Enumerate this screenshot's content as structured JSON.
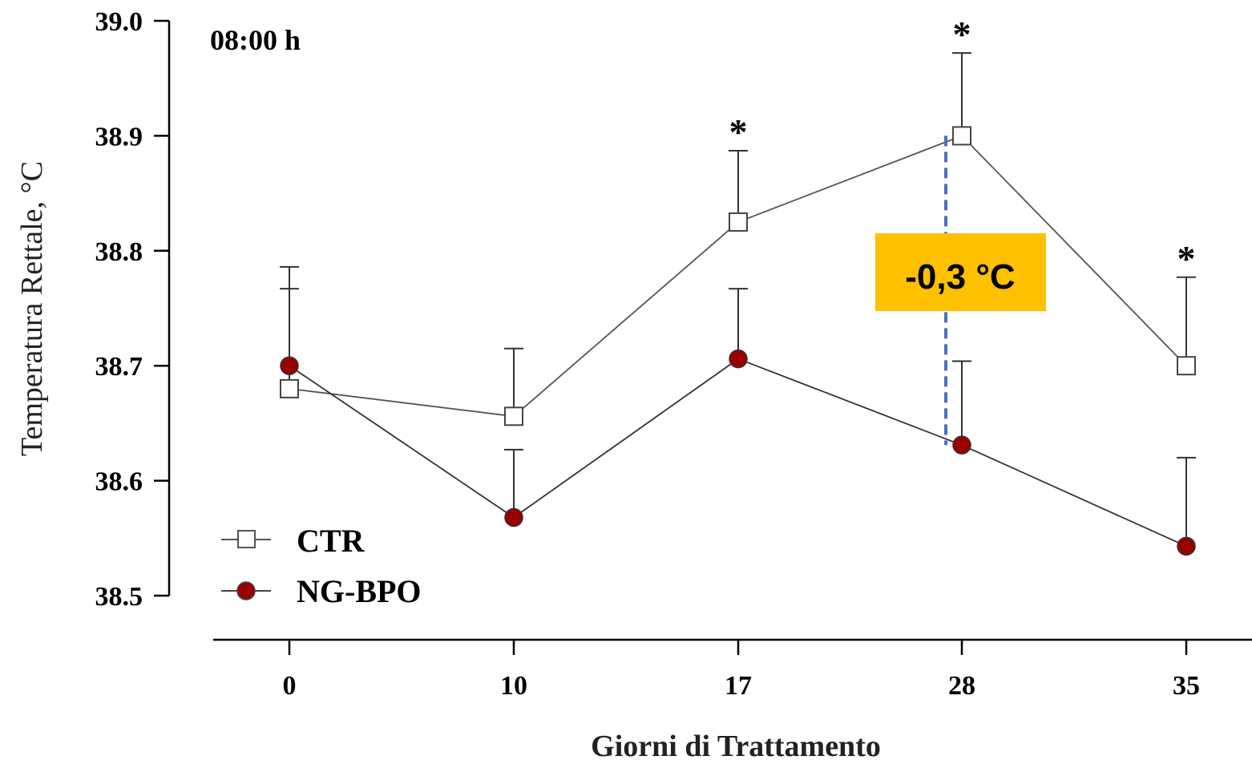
{
  "chart_data": {
    "type": "line",
    "annotation_time": "08:00 h",
    "xlabel": "Giorni di Trattamento",
    "ylabel": "Temperatura Rettale, °C",
    "x": [
      0,
      10,
      17,
      28,
      35
    ],
    "x_tick_labels": [
      "0",
      "10",
      "17",
      "28",
      "35"
    ],
    "ylim": [
      38.5,
      39.0
    ],
    "y_ticks": [
      38.5,
      38.6,
      38.7,
      38.8,
      38.9,
      39.0
    ],
    "y_tick_labels": [
      "38.5",
      "38.6",
      "38.7",
      "38.8",
      "38.9",
      "39.0"
    ],
    "series": [
      {
        "name": "CTR",
        "marker": "open-square",
        "values": [
          38.68,
          38.656,
          38.825,
          38.9,
          38.7
        ],
        "error_upper": [
          38.767,
          38.715,
          38.887,
          38.972,
          38.777
        ]
      },
      {
        "name": "NG-BPO",
        "marker": "filled-circle",
        "color": "#9b0000",
        "values": [
          38.7,
          38.568,
          38.706,
          38.631,
          38.543
        ],
        "error_upper": [
          38.786,
          38.627,
          38.767,
          38.704,
          38.62
        ]
      }
    ],
    "significance_markers": [
      {
        "x": 17,
        "label": "*"
      },
      {
        "x": 28,
        "label": "*"
      },
      {
        "x": 35,
        "label": "*"
      }
    ],
    "difference_annotation": {
      "x": 28,
      "label": "-0,3 °C",
      "box_color": "#ffc000",
      "line_color": "#4472c4"
    },
    "legend": {
      "placement": "bottom-left",
      "entries": [
        "CTR",
        "NG-BPO"
      ]
    },
    "grid": false
  }
}
